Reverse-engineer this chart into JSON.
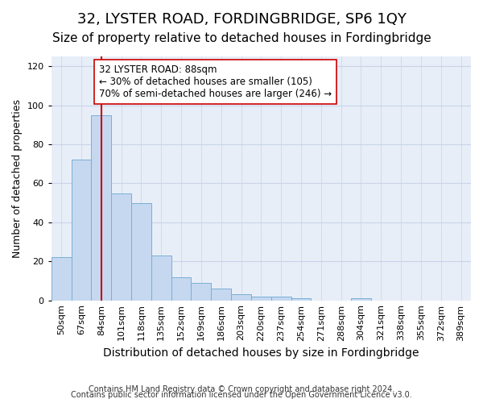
{
  "title": "32, LYSTER ROAD, FORDINGBRIDGE, SP6 1QY",
  "subtitle": "Size of property relative to detached houses in Fordingbridge",
  "xlabel": "Distribution of detached houses by size in Fordingbridge",
  "ylabel": "Number of detached properties",
  "footnote1": "Contains HM Land Registry data © Crown copyright and database right 2024.",
  "footnote2": "Contains public sector information licensed under the Open Government Licence v3.0.",
  "bin_labels": [
    "50sqm",
    "67sqm",
    "84sqm",
    "101sqm",
    "118sqm",
    "135sqm",
    "152sqm",
    "169sqm",
    "186sqm",
    "203sqm",
    "220sqm",
    "237sqm",
    "254sqm",
    "271sqm",
    "288sqm",
    "304sqm",
    "321sqm",
    "338sqm",
    "355sqm",
    "372sqm",
    "389sqm"
  ],
  "bar_values": [
    22,
    72,
    95,
    55,
    50,
    23,
    12,
    9,
    6,
    3,
    2,
    2,
    1,
    0,
    0,
    1,
    0,
    0,
    0,
    0,
    0
  ],
  "bar_color": "#c5d8f0",
  "bar_edge_color": "#7aafd4",
  "vline_x": 2,
  "vline_color": "#cc0000",
  "annotation_text": "32 LYSTER ROAD: 88sqm\n← 30% of detached houses are smaller (105)\n70% of semi-detached houses are larger (246) →",
  "annotation_box_color": "#ffffff",
  "annotation_box_edge": "#cc0000",
  "ylim": [
    0,
    125
  ],
  "yticks": [
    0,
    20,
    40,
    60,
    80,
    100,
    120
  ],
  "grid_color": "#c8d4e8",
  "bg_color": "#e8eef8",
  "title_fontsize": 13,
  "subtitle_fontsize": 11,
  "xlabel_fontsize": 10,
  "ylabel_fontsize": 9,
  "tick_fontsize": 8
}
